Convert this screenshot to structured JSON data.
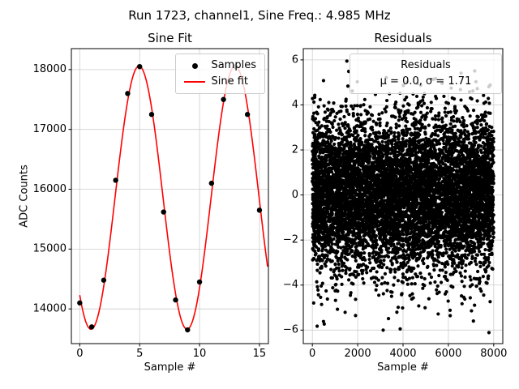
{
  "figure": {
    "title": "Run 1723, channel1, Sine Freq.: 4.985 MHz",
    "background": "#ffffff",
    "text_color": "#000000",
    "grid_color": "#cdcdcd"
  },
  "chart_data": [
    {
      "type": "line",
      "title": "Sine Fit",
      "xlabel": "Sample #",
      "ylabel": "ADC Counts",
      "xlim": [
        -0.7,
        15.75
      ],
      "ylim": [
        13420,
        18350
      ],
      "xticks": [
        0,
        5,
        10,
        15
      ],
      "xtick_labels": [
        "0",
        "5",
        "10",
        "15"
      ],
      "yticks": [
        14000,
        15000,
        16000,
        17000,
        18000
      ],
      "ytick_labels": [
        "14000",
        "15000",
        "16000",
        "17000",
        "18000"
      ],
      "grid": true,
      "legend": {
        "position": "upper right",
        "entries": [
          {
            "label": "Samples",
            "marker": "dot",
            "color": "#000000"
          },
          {
            "label": "Sine fit",
            "marker": "line",
            "color": "#ff0000"
          }
        ]
      },
      "samples": {
        "marker_color": "#000000",
        "x": [
          0,
          1,
          2,
          3,
          4,
          5,
          6,
          7,
          8,
          9,
          10,
          11,
          12,
          13,
          14,
          15
        ],
        "y": [
          14100,
          13700,
          14480,
          16150,
          17600,
          18050,
          17250,
          15620,
          14150,
          13650,
          14450,
          16100,
          17500,
          18050,
          17250,
          15650
        ]
      },
      "fit": {
        "color": "#ff0000",
        "amplitude": 2200,
        "offset": 15860,
        "period": 8.02,
        "peak_x": 4.95,
        "x_start": 0,
        "x_end": 15.7
      }
    },
    {
      "type": "scatter",
      "title": "Residuals",
      "xlabel": "Sample #",
      "ylabel": "",
      "xlim": [
        -400,
        8400
      ],
      "ylim": [
        -6.6,
        6.5
      ],
      "xticks": [
        0,
        2000,
        4000,
        6000,
        8000
      ],
      "xtick_labels": [
        "0",
        "2000",
        "4000",
        "6000",
        "8000"
      ],
      "yticks": [
        -6,
        -4,
        -2,
        0,
        2,
        4,
        6
      ],
      "ytick_labels": [
        "−6",
        "−4",
        "−2",
        "0",
        "2",
        "4",
        "6"
      ],
      "grid": true,
      "legend": {
        "position": "upper right",
        "title": "Residuals",
        "entries": [
          {
            "label": "μ = 0.0, σ = 1.71",
            "marker": "none"
          }
        ]
      },
      "points": {
        "n": 8000,
        "mu": 0.0,
        "sigma": 1.71,
        "x_min": 0,
        "x_max": 8000,
        "color": "#000000",
        "seed": 1723
      }
    }
  ]
}
